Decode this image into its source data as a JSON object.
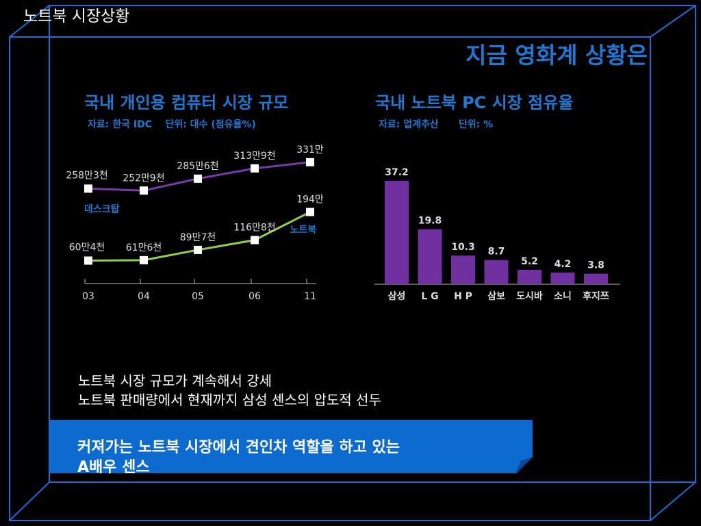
{
  "slide": {
    "title": "노트북 시장상황",
    "headline": "지금 영화계 상황은"
  },
  "summary": {
    "line1": "노트북 시장 규모가 계속해서 강세",
    "line2": "노트북 판매량에서 현재까지 삼성 센스의 압도적 선두"
  },
  "banner": {
    "line1": "커져가는 노트북 시장에서 견인차 역할을 하고 있는",
    "line2": "A배우 센스"
  },
  "colors": {
    "accent": "#1f78d1",
    "desktop_line": "#7a3aa8",
    "notebook_line": "#8fd04f",
    "bar": "#7030a0",
    "banner": "#0d6bd0"
  },
  "chart_data": [
    {
      "type": "line",
      "title": "국내 개인용 컴퓨터 시장 규모",
      "source": "자료: 한국 IDC",
      "unit": "단위: 대수 (점유율%)",
      "categories": [
        "03",
        "04",
        "05",
        "06",
        "11"
      ],
      "series": [
        {
          "name": "데스크탑",
          "values": [
            2583000,
            2529000,
            2856000,
            3139000,
            3310000
          ],
          "labels": [
            "258만3천",
            "252만9천",
            "285만6천",
            "313만9천",
            "331만"
          ]
        },
        {
          "name": "노트북",
          "values": [
            604000,
            616000,
            897000,
            1168000,
            1940000
          ],
          "labels": [
            "60만4천",
            "61만6천",
            "89만7천",
            "116만8천",
            "194만"
          ]
        }
      ]
    },
    {
      "type": "bar",
      "title": "국내 노트북 PC 시장 점유율",
      "source": "자료: 업계추산",
      "unit": "단위: %",
      "categories": [
        "삼성",
        "L G",
        "H P",
        "삼보",
        "도시바",
        "소니",
        "후지쯔"
      ],
      "values": [
        37.2,
        19.8,
        10.3,
        8.7,
        5.2,
        4.2,
        3.8
      ],
      "labels": [
        "37.2",
        "19.8",
        "10.3",
        "8.7",
        "5.2",
        "4.2",
        "3.8"
      ]
    }
  ]
}
